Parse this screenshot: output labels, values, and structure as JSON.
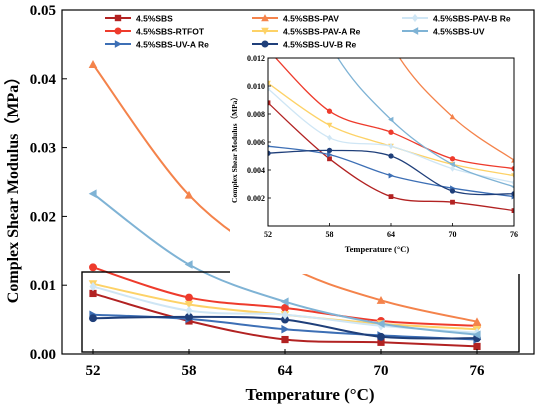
{
  "chart_data": [
    {
      "type": "line",
      "xlabel": "Temperature (°C)",
      "ylabel": "Complex Shear Modulus（MPa）",
      "x": [
        52,
        58,
        64,
        70,
        76
      ],
      "xticks": [
        "52",
        "58",
        "64",
        "70",
        "76"
      ],
      "ylim": [
        0,
        0.05
      ],
      "yticks": [
        "0.00",
        "0.01",
        "0.02",
        "0.03",
        "0.04",
        "0.05"
      ],
      "legend_position": "top",
      "series": [
        {
          "name": "4.5%SBS",
          "color": "#b22222",
          "marker": "square",
          "values": [
            0.0088,
            0.0048,
            0.0021,
            0.0017,
            0.0011
          ]
        },
        {
          "name": "4.5%SBS-RTFOT",
          "color": "#ee3b2c",
          "marker": "circle",
          "values": [
            0.0126,
            0.0082,
            0.0067,
            0.0048,
            0.0041
          ]
        },
        {
          "name": "4.5%SBS-UV-A Re",
          "color": "#3d6fb5",
          "marker": "triangle-right",
          "values": [
            0.0057,
            0.0051,
            0.0036,
            0.0027,
            0.0021
          ]
        },
        {
          "name": "4.5%SBS-PAV",
          "color": "#f4834b",
          "marker": "triangle-up",
          "values": [
            0.0421,
            0.0231,
            0.013,
            0.0078,
            0.0047
          ]
        },
        {
          "name": "4.5%SBS-PAV-A Re",
          "color": "#fdd267",
          "marker": "triangle-down",
          "values": [
            0.0102,
            0.0072,
            0.0057,
            0.0044,
            0.0036
          ]
        },
        {
          "name": "4.5%SBS-UV-B Re",
          "color": "#1f3f7a",
          "marker": "circle",
          "values": [
            0.0052,
            0.0054,
            0.005,
            0.0025,
            0.0023
          ]
        },
        {
          "name": "4.5%SBS-PAV-B Re",
          "color": "#cfe6f5",
          "marker": "diamond",
          "values": [
            0.0098,
            0.0063,
            0.0057,
            0.0041,
            0.0031
          ]
        },
        {
          "name": "4.5%SBS-UV",
          "color": "#7fb3d5",
          "marker": "triangle-left",
          "values": [
            0.0233,
            0.013,
            0.0076,
            0.0044,
            0.0028
          ]
        }
      ]
    },
    {
      "type": "line",
      "xlabel": "Temperature (°C)",
      "ylabel": "Complex Shear Modulus（MPa）",
      "x": [
        52,
        58,
        64,
        70,
        76
      ],
      "xticks": [
        "52",
        "58",
        "64",
        "70",
        "76"
      ],
      "ylim": [
        0,
        0.012
      ],
      "yticks": [
        "0.002",
        "0.004",
        "0.006",
        "0.008",
        "0.010",
        "0.012"
      ],
      "note": "zoomed inset of the boxed region of the main chart"
    }
  ]
}
